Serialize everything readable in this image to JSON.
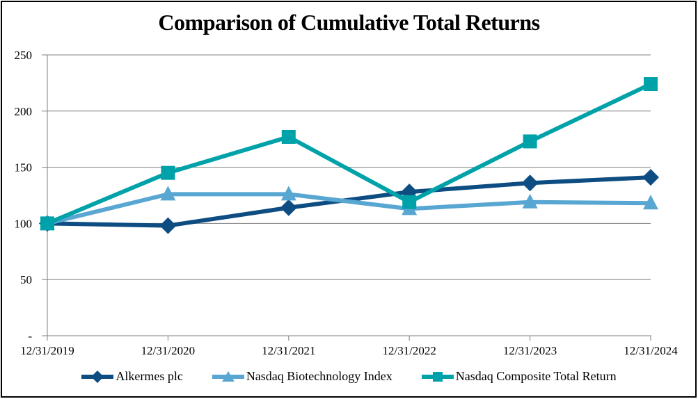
{
  "chart_data": {
    "type": "line",
    "title": "Comparison of Cumulative Total Returns",
    "x": [
      "12/31/2019",
      "12/31/2020",
      "12/31/2021",
      "12/31/2022",
      "12/31/2023",
      "12/31/2024"
    ],
    "series": [
      {
        "name": "Alkermes plc",
        "marker": "diamond",
        "color": "#0E4D82",
        "values": [
          100,
          98,
          114,
          128,
          136,
          141
        ]
      },
      {
        "name": "Nasdaq Biotechnology Index",
        "marker": "triangle",
        "color": "#58A6D2",
        "values": [
          100,
          126,
          126,
          113,
          119,
          118
        ]
      },
      {
        "name": "Nasdaq Composite Total Return",
        "marker": "square",
        "color": "#00A2A9",
        "values": [
          100,
          145,
          177,
          119,
          173,
          224
        ]
      }
    ],
    "ylim": [
      0,
      250
    ],
    "yticks": [
      0,
      50,
      100,
      150,
      200,
      250
    ],
    "ytick_labels": [
      "-",
      "50",
      "100",
      "150",
      "200",
      "250"
    ],
    "grid": "horizontal-only",
    "legend_position": "bottom",
    "colors": {
      "grid": "#7F7F7F",
      "axis": "#7F7F7F",
      "background": "#FFFFFF",
      "border": "#000000",
      "text": "#000000"
    }
  }
}
